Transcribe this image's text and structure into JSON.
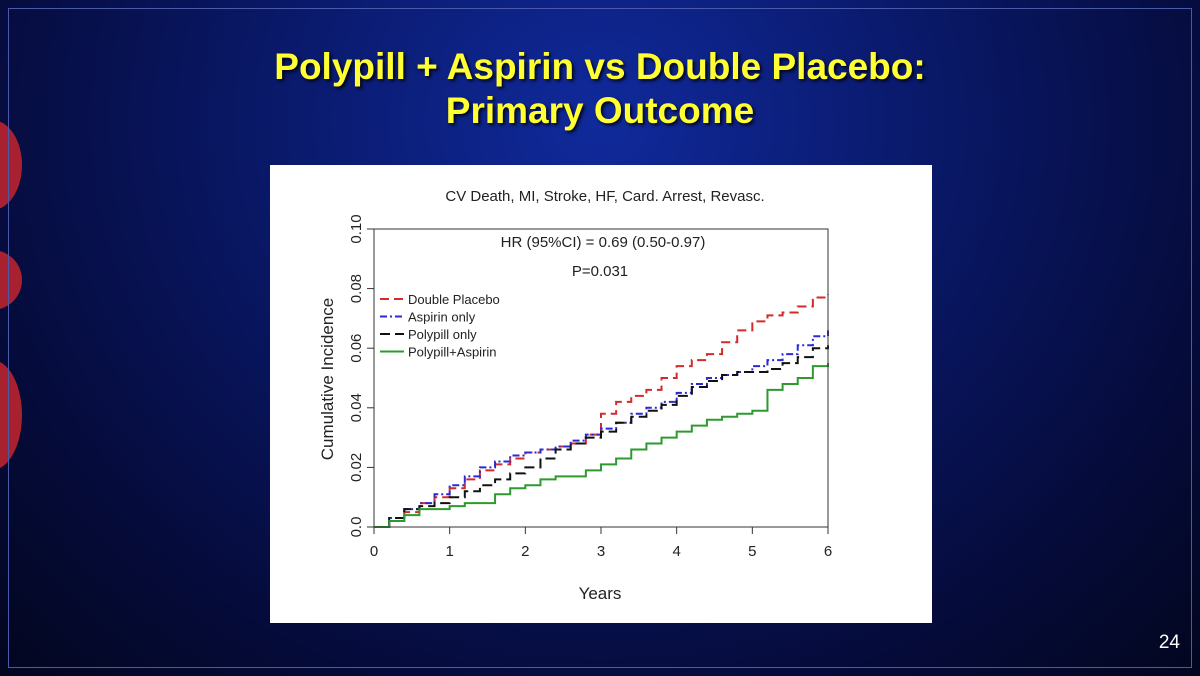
{
  "slide": {
    "title_line1": "Polypill + Aspirin vs Double Placebo:",
    "title_line2": "Primary Outcome",
    "page_number": "24"
  },
  "chart_data": {
    "type": "line",
    "title": "CV Death, MI, Stroke, HF, Card. Arrest, Revasc.",
    "xlabel": "Years",
    "ylabel": "Cumulative Incidence",
    "xlim": [
      0,
      6
    ],
    "ylim": [
      0,
      0.1
    ],
    "xticks": [
      "0",
      "1",
      "2",
      "3",
      "4",
      "5",
      "6"
    ],
    "yticks": [
      "0.0",
      "0.02",
      "0.04",
      "0.06",
      "0.08",
      "0.10"
    ],
    "annotations": {
      "hr": "HR (95%CI) = 0.69 (0.50-0.97)",
      "p": "P=0.031"
    },
    "legend_position": "top-left",
    "series": [
      {
        "name": "Double Placebo",
        "color": "#d42a2a",
        "dash": "9,5",
        "points": [
          [
            0,
            0
          ],
          [
            0.2,
            0.002
          ],
          [
            0.4,
            0.005
          ],
          [
            0.6,
            0.008
          ],
          [
            0.8,
            0.01
          ],
          [
            1.0,
            0.013
          ],
          [
            1.2,
            0.016
          ],
          [
            1.4,
            0.019
          ],
          [
            1.6,
            0.021
          ],
          [
            1.8,
            0.023
          ],
          [
            2.0,
            0.025
          ],
          [
            2.2,
            0.026
          ],
          [
            2.4,
            0.027
          ],
          [
            2.6,
            0.028
          ],
          [
            2.8,
            0.031
          ],
          [
            3.0,
            0.038
          ],
          [
            3.2,
            0.042
          ],
          [
            3.4,
            0.044
          ],
          [
            3.6,
            0.046
          ],
          [
            3.8,
            0.05
          ],
          [
            4.0,
            0.054
          ],
          [
            4.2,
            0.056
          ],
          [
            4.4,
            0.058
          ],
          [
            4.6,
            0.062
          ],
          [
            4.8,
            0.066
          ],
          [
            5.0,
            0.069
          ],
          [
            5.2,
            0.071
          ],
          [
            5.4,
            0.072
          ],
          [
            5.6,
            0.074
          ],
          [
            5.8,
            0.077
          ],
          [
            6.0,
            0.078
          ]
        ]
      },
      {
        "name": "Aspirin only",
        "color": "#2a2ad4",
        "dash": "7,3,2,3",
        "points": [
          [
            0,
            0
          ],
          [
            0.2,
            0.003
          ],
          [
            0.4,
            0.006
          ],
          [
            0.6,
            0.008
          ],
          [
            0.8,
            0.011
          ],
          [
            1.0,
            0.014
          ],
          [
            1.2,
            0.017
          ],
          [
            1.4,
            0.02
          ],
          [
            1.6,
            0.022
          ],
          [
            1.8,
            0.024
          ],
          [
            2.0,
            0.025
          ],
          [
            2.2,
            0.026
          ],
          [
            2.4,
            0.027
          ],
          [
            2.6,
            0.029
          ],
          [
            2.8,
            0.031
          ],
          [
            3.0,
            0.033
          ],
          [
            3.2,
            0.035
          ],
          [
            3.4,
            0.038
          ],
          [
            3.6,
            0.04
          ],
          [
            3.8,
            0.042
          ],
          [
            4.0,
            0.045
          ],
          [
            4.2,
            0.048
          ],
          [
            4.4,
            0.05
          ],
          [
            4.6,
            0.051
          ],
          [
            4.8,
            0.052
          ],
          [
            5.0,
            0.054
          ],
          [
            5.2,
            0.056
          ],
          [
            5.4,
            0.058
          ],
          [
            5.6,
            0.061
          ],
          [
            5.8,
            0.064
          ],
          [
            6.0,
            0.066
          ]
        ]
      },
      {
        "name": "Polypill only",
        "color": "#111111",
        "dash": "10,5",
        "points": [
          [
            0,
            0
          ],
          [
            0.2,
            0.003
          ],
          [
            0.4,
            0.006
          ],
          [
            0.6,
            0.007
          ],
          [
            0.8,
            0.008
          ],
          [
            1.0,
            0.01
          ],
          [
            1.2,
            0.012
          ],
          [
            1.4,
            0.014
          ],
          [
            1.6,
            0.016
          ],
          [
            1.8,
            0.018
          ],
          [
            2.0,
            0.02
          ],
          [
            2.2,
            0.023
          ],
          [
            2.4,
            0.026
          ],
          [
            2.6,
            0.028
          ],
          [
            2.8,
            0.03
          ],
          [
            3.0,
            0.032
          ],
          [
            3.2,
            0.035
          ],
          [
            3.4,
            0.037
          ],
          [
            3.6,
            0.039
          ],
          [
            3.8,
            0.041
          ],
          [
            4.0,
            0.044
          ],
          [
            4.2,
            0.047
          ],
          [
            4.4,
            0.049
          ],
          [
            4.6,
            0.051
          ],
          [
            4.8,
            0.052
          ],
          [
            5.0,
            0.052
          ],
          [
            5.2,
            0.053
          ],
          [
            5.4,
            0.055
          ],
          [
            5.6,
            0.057
          ],
          [
            5.8,
            0.06
          ],
          [
            6.0,
            0.061
          ]
        ]
      },
      {
        "name": "Polypill+Aspirin",
        "color": "#2e9a2e",
        "dash": "",
        "points": [
          [
            0,
            0
          ],
          [
            0.2,
            0.002
          ],
          [
            0.4,
            0.004
          ],
          [
            0.6,
            0.006
          ],
          [
            0.8,
            0.006
          ],
          [
            1.0,
            0.007
          ],
          [
            1.2,
            0.008
          ],
          [
            1.4,
            0.008
          ],
          [
            1.6,
            0.011
          ],
          [
            1.8,
            0.013
          ],
          [
            2.0,
            0.014
          ],
          [
            2.2,
            0.016
          ],
          [
            2.4,
            0.017
          ],
          [
            2.6,
            0.017
          ],
          [
            2.8,
            0.019
          ],
          [
            3.0,
            0.021
          ],
          [
            3.2,
            0.023
          ],
          [
            3.4,
            0.026
          ],
          [
            3.6,
            0.028
          ],
          [
            3.8,
            0.03
          ],
          [
            4.0,
            0.032
          ],
          [
            4.2,
            0.034
          ],
          [
            4.4,
            0.036
          ],
          [
            4.6,
            0.037
          ],
          [
            4.8,
            0.038
          ],
          [
            5.0,
            0.039
          ],
          [
            5.2,
            0.046
          ],
          [
            5.4,
            0.048
          ],
          [
            5.6,
            0.05
          ],
          [
            5.8,
            0.054
          ],
          [
            6.0,
            0.055
          ]
        ]
      }
    ]
  }
}
